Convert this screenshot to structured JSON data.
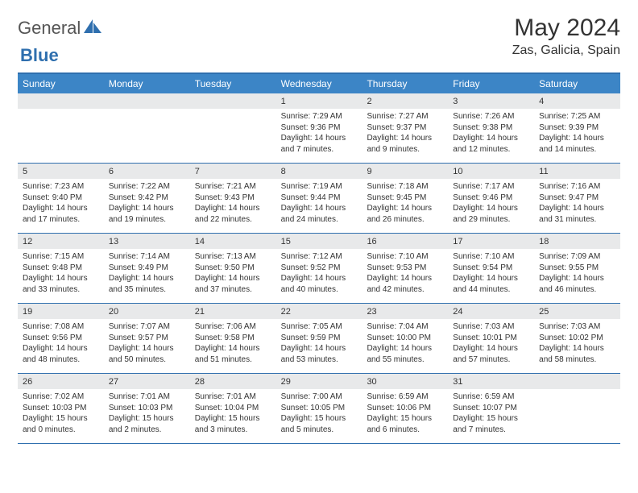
{
  "logo": {
    "text1": "General",
    "text2": "Blue"
  },
  "title": "May 2024",
  "location": "Zas, Galicia, Spain",
  "colors": {
    "accent": "#3c85c6",
    "accent_border": "#2f6fae",
    "band": "#e8e9ea",
    "text": "#333333"
  },
  "dayHeaders": [
    "Sunday",
    "Monday",
    "Tuesday",
    "Wednesday",
    "Thursday",
    "Friday",
    "Saturday"
  ],
  "weeks": [
    [
      {
        "num": "",
        "sunrise": "",
        "sunset": "",
        "daylight": ""
      },
      {
        "num": "",
        "sunrise": "",
        "sunset": "",
        "daylight": ""
      },
      {
        "num": "",
        "sunrise": "",
        "sunset": "",
        "daylight": ""
      },
      {
        "num": "1",
        "sunrise": "Sunrise: 7:29 AM",
        "sunset": "Sunset: 9:36 PM",
        "daylight": "Daylight: 14 hours and 7 minutes."
      },
      {
        "num": "2",
        "sunrise": "Sunrise: 7:27 AM",
        "sunset": "Sunset: 9:37 PM",
        "daylight": "Daylight: 14 hours and 9 minutes."
      },
      {
        "num": "3",
        "sunrise": "Sunrise: 7:26 AM",
        "sunset": "Sunset: 9:38 PM",
        "daylight": "Daylight: 14 hours and 12 minutes."
      },
      {
        "num": "4",
        "sunrise": "Sunrise: 7:25 AM",
        "sunset": "Sunset: 9:39 PM",
        "daylight": "Daylight: 14 hours and 14 minutes."
      }
    ],
    [
      {
        "num": "5",
        "sunrise": "Sunrise: 7:23 AM",
        "sunset": "Sunset: 9:40 PM",
        "daylight": "Daylight: 14 hours and 17 minutes."
      },
      {
        "num": "6",
        "sunrise": "Sunrise: 7:22 AM",
        "sunset": "Sunset: 9:42 PM",
        "daylight": "Daylight: 14 hours and 19 minutes."
      },
      {
        "num": "7",
        "sunrise": "Sunrise: 7:21 AM",
        "sunset": "Sunset: 9:43 PM",
        "daylight": "Daylight: 14 hours and 22 minutes."
      },
      {
        "num": "8",
        "sunrise": "Sunrise: 7:19 AM",
        "sunset": "Sunset: 9:44 PM",
        "daylight": "Daylight: 14 hours and 24 minutes."
      },
      {
        "num": "9",
        "sunrise": "Sunrise: 7:18 AM",
        "sunset": "Sunset: 9:45 PM",
        "daylight": "Daylight: 14 hours and 26 minutes."
      },
      {
        "num": "10",
        "sunrise": "Sunrise: 7:17 AM",
        "sunset": "Sunset: 9:46 PM",
        "daylight": "Daylight: 14 hours and 29 minutes."
      },
      {
        "num": "11",
        "sunrise": "Sunrise: 7:16 AM",
        "sunset": "Sunset: 9:47 PM",
        "daylight": "Daylight: 14 hours and 31 minutes."
      }
    ],
    [
      {
        "num": "12",
        "sunrise": "Sunrise: 7:15 AM",
        "sunset": "Sunset: 9:48 PM",
        "daylight": "Daylight: 14 hours and 33 minutes."
      },
      {
        "num": "13",
        "sunrise": "Sunrise: 7:14 AM",
        "sunset": "Sunset: 9:49 PM",
        "daylight": "Daylight: 14 hours and 35 minutes."
      },
      {
        "num": "14",
        "sunrise": "Sunrise: 7:13 AM",
        "sunset": "Sunset: 9:50 PM",
        "daylight": "Daylight: 14 hours and 37 minutes."
      },
      {
        "num": "15",
        "sunrise": "Sunrise: 7:12 AM",
        "sunset": "Sunset: 9:52 PM",
        "daylight": "Daylight: 14 hours and 40 minutes."
      },
      {
        "num": "16",
        "sunrise": "Sunrise: 7:10 AM",
        "sunset": "Sunset: 9:53 PM",
        "daylight": "Daylight: 14 hours and 42 minutes."
      },
      {
        "num": "17",
        "sunrise": "Sunrise: 7:10 AM",
        "sunset": "Sunset: 9:54 PM",
        "daylight": "Daylight: 14 hours and 44 minutes."
      },
      {
        "num": "18",
        "sunrise": "Sunrise: 7:09 AM",
        "sunset": "Sunset: 9:55 PM",
        "daylight": "Daylight: 14 hours and 46 minutes."
      }
    ],
    [
      {
        "num": "19",
        "sunrise": "Sunrise: 7:08 AM",
        "sunset": "Sunset: 9:56 PM",
        "daylight": "Daylight: 14 hours and 48 minutes."
      },
      {
        "num": "20",
        "sunrise": "Sunrise: 7:07 AM",
        "sunset": "Sunset: 9:57 PM",
        "daylight": "Daylight: 14 hours and 50 minutes."
      },
      {
        "num": "21",
        "sunrise": "Sunrise: 7:06 AM",
        "sunset": "Sunset: 9:58 PM",
        "daylight": "Daylight: 14 hours and 51 minutes."
      },
      {
        "num": "22",
        "sunrise": "Sunrise: 7:05 AM",
        "sunset": "Sunset: 9:59 PM",
        "daylight": "Daylight: 14 hours and 53 minutes."
      },
      {
        "num": "23",
        "sunrise": "Sunrise: 7:04 AM",
        "sunset": "Sunset: 10:00 PM",
        "daylight": "Daylight: 14 hours and 55 minutes."
      },
      {
        "num": "24",
        "sunrise": "Sunrise: 7:03 AM",
        "sunset": "Sunset: 10:01 PM",
        "daylight": "Daylight: 14 hours and 57 minutes."
      },
      {
        "num": "25",
        "sunrise": "Sunrise: 7:03 AM",
        "sunset": "Sunset: 10:02 PM",
        "daylight": "Daylight: 14 hours and 58 minutes."
      }
    ],
    [
      {
        "num": "26",
        "sunrise": "Sunrise: 7:02 AM",
        "sunset": "Sunset: 10:03 PM",
        "daylight": "Daylight: 15 hours and 0 minutes."
      },
      {
        "num": "27",
        "sunrise": "Sunrise: 7:01 AM",
        "sunset": "Sunset: 10:03 PM",
        "daylight": "Daylight: 15 hours and 2 minutes."
      },
      {
        "num": "28",
        "sunrise": "Sunrise: 7:01 AM",
        "sunset": "Sunset: 10:04 PM",
        "daylight": "Daylight: 15 hours and 3 minutes."
      },
      {
        "num": "29",
        "sunrise": "Sunrise: 7:00 AM",
        "sunset": "Sunset: 10:05 PM",
        "daylight": "Daylight: 15 hours and 5 minutes."
      },
      {
        "num": "30",
        "sunrise": "Sunrise: 6:59 AM",
        "sunset": "Sunset: 10:06 PM",
        "daylight": "Daylight: 15 hours and 6 minutes."
      },
      {
        "num": "31",
        "sunrise": "Sunrise: 6:59 AM",
        "sunset": "Sunset: 10:07 PM",
        "daylight": "Daylight: 15 hours and 7 minutes."
      },
      {
        "num": "",
        "sunrise": "",
        "sunset": "",
        "daylight": ""
      }
    ]
  ]
}
